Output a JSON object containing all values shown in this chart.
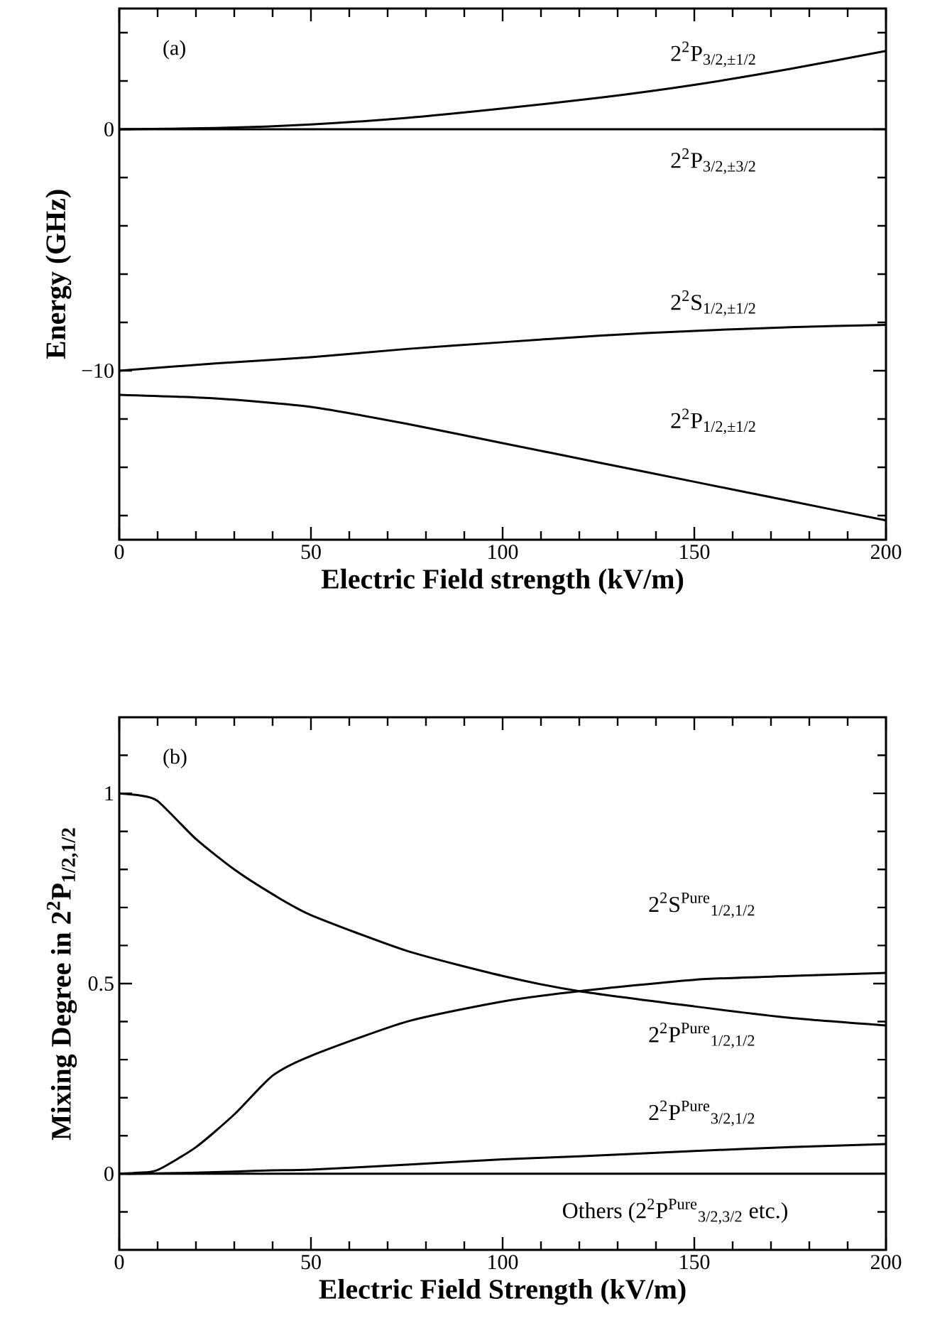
{
  "chart_data": [
    {
      "type": "line",
      "xlabel": "Electric Field strength (kV/m)",
      "ylabel": "Energy (GHz)",
      "annotations": [
        "(a)"
      ],
      "xlim": [
        0,
        200
      ],
      "ylim": [
        -17,
        5
      ],
      "xticks": [
        0,
        {
          "value": 10,
          "label": null
        },
        {
          "value": 20,
          "label": null
        },
        {
          "value": 30,
          "label": null
        },
        {
          "value": 40,
          "label": null
        },
        50,
        {
          "value": 60,
          "label": null
        },
        {
          "value": 70,
          "label": null
        },
        {
          "value": 80,
          "label": null
        },
        {
          "value": 90,
          "label": null
        },
        100,
        {
          "value": 110,
          "label": null
        },
        {
          "value": 120,
          "label": null
        },
        {
          "value": 130,
          "label": null
        },
        {
          "value": 140,
          "label": null
        },
        150,
        {
          "value": 160,
          "label": null
        },
        {
          "value": 170,
          "label": null
        },
        {
          "value": 180,
          "label": null
        },
        {
          "value": 190,
          "label": null
        },
        200
      ],
      "yticks": [
        {
          "value": -16,
          "label": null
        },
        {
          "value": -14,
          "label": null
        },
        {
          "value": -12,
          "label": null
        },
        {
          "value": -10,
          "label": "−10"
        },
        {
          "value": -8,
          "label": null
        },
        {
          "value": -6,
          "label": null
        },
        {
          "value": -4,
          "label": null
        },
        {
          "value": -2,
          "label": null
        },
        0,
        {
          "value": 2,
          "label": null
        },
        {
          "value": 4,
          "label": null
        }
      ],
      "x": [
        0,
        25,
        50,
        75,
        100,
        125,
        150,
        175,
        200
      ],
      "series": [
        {
          "name": "2$^{2}$P$_{3/2,±1/2}$",
          "color": "#000000",
          "values": [
            0,
            0.05,
            0.2,
            0.47,
            0.86,
            1.3,
            1.84,
            2.5,
            3.24
          ]
        },
        {
          "name": "2$^{2}$P$_{3/2,±3/2}$",
          "color": "#000000",
          "values": [
            0,
            0,
            0,
            0,
            0,
            0,
            0,
            0,
            0
          ]
        },
        {
          "name": "2$^{2}$S$_{1/2,±1/2}$",
          "color": "#000000",
          "values": [
            -10,
            -9.7,
            -9.44,
            -9.1,
            -8.82,
            -8.55,
            -8.35,
            -8.2,
            -8.1
          ]
        },
        {
          "name": "2$^{2}$P$_{1/2,±1/2}$",
          "color": "#000000",
          "values": [
            -11,
            -11.15,
            -11.5,
            -12.2,
            -13.0,
            -13.8,
            -14.6,
            -15.4,
            -16.2
          ]
        }
      ]
    },
    {
      "type": "line",
      "xlabel": "Electric Field Strength (kV/m)",
      "ylabel": "Mixing Degree in 2$^{2}$P$_{1/2,1/2}$",
      "annotations": [
        "(b)"
      ],
      "xlim": [
        0,
        200
      ],
      "ylim": [
        -0.2,
        1.2
      ],
      "xticks": [
        0,
        {
          "value": 10,
          "label": null
        },
        {
          "value": 20,
          "label": null
        },
        {
          "value": 30,
          "label": null
        },
        {
          "value": 40,
          "label": null
        },
        50,
        {
          "value": 60,
          "label": null
        },
        {
          "value": 70,
          "label": null
        },
        {
          "value": 80,
          "label": null
        },
        {
          "value": 90,
          "label": null
        },
        100,
        {
          "value": 110,
          "label": null
        },
        {
          "value": 120,
          "label": null
        },
        {
          "value": 130,
          "label": null
        },
        {
          "value": 140,
          "label": null
        },
        150,
        {
          "value": 160,
          "label": null
        },
        {
          "value": 170,
          "label": null
        },
        {
          "value": 180,
          "label": null
        },
        {
          "value": 190,
          "label": null
        },
        200
      ],
      "yticks": [
        {
          "value": -0.1,
          "label": null
        },
        0,
        {
          "value": 0.1,
          "label": null
        },
        {
          "value": 0.2,
          "label": null
        },
        {
          "value": 0.3,
          "label": null
        },
        {
          "value": 0.4,
          "label": null
        },
        0.5,
        {
          "value": 0.6,
          "label": null
        },
        {
          "value": 0.7,
          "label": null
        },
        {
          "value": 0.8,
          "label": null
        },
        {
          "value": 0.9,
          "label": null
        },
        1,
        {
          "value": 1.1,
          "label": null
        }
      ],
      "x": [
        0,
        5,
        10,
        20,
        30,
        40,
        50,
        75,
        100,
        120,
        150,
        175,
        200
      ],
      "series": [
        {
          "name": "2$^{2}$P$^{Pure}$$_{1/2,1/2}$",
          "color": "#000000",
          "values": [
            1,
            0.995,
            0.98,
            0.88,
            0.8,
            0.735,
            0.68,
            0.586,
            0.52,
            0.48,
            0.44,
            0.41,
            0.39
          ]
        },
        {
          "name": "2$^{2}$S$^{Pure}$$_{1/2,1/2}$",
          "color": "#000000",
          "values": [
            0,
            0.003,
            0.01,
            0.07,
            0.156,
            0.258,
            0.31,
            0.4,
            0.453,
            0.48,
            0.51,
            0.52,
            0.528
          ]
        },
        {
          "name": "2$^{2}$P$^{Pure}$$_{3/2,1/2}$",
          "color": "#000000",
          "values": [
            0,
            0,
            0.001,
            0.003,
            0.006,
            0.009,
            0.011,
            0.024,
            0.038,
            0.046,
            0.06,
            0.07,
            0.078
          ]
        },
        {
          "name": "Others (2$^{2}$P$^{Pure}$$_{3/2,3/2}$ etc.)",
          "color": "#000000",
          "values": [
            0,
            0,
            0,
            0,
            0,
            0,
            0,
            0,
            0,
            0,
            0,
            0,
            0
          ]
        }
      ]
    }
  ]
}
